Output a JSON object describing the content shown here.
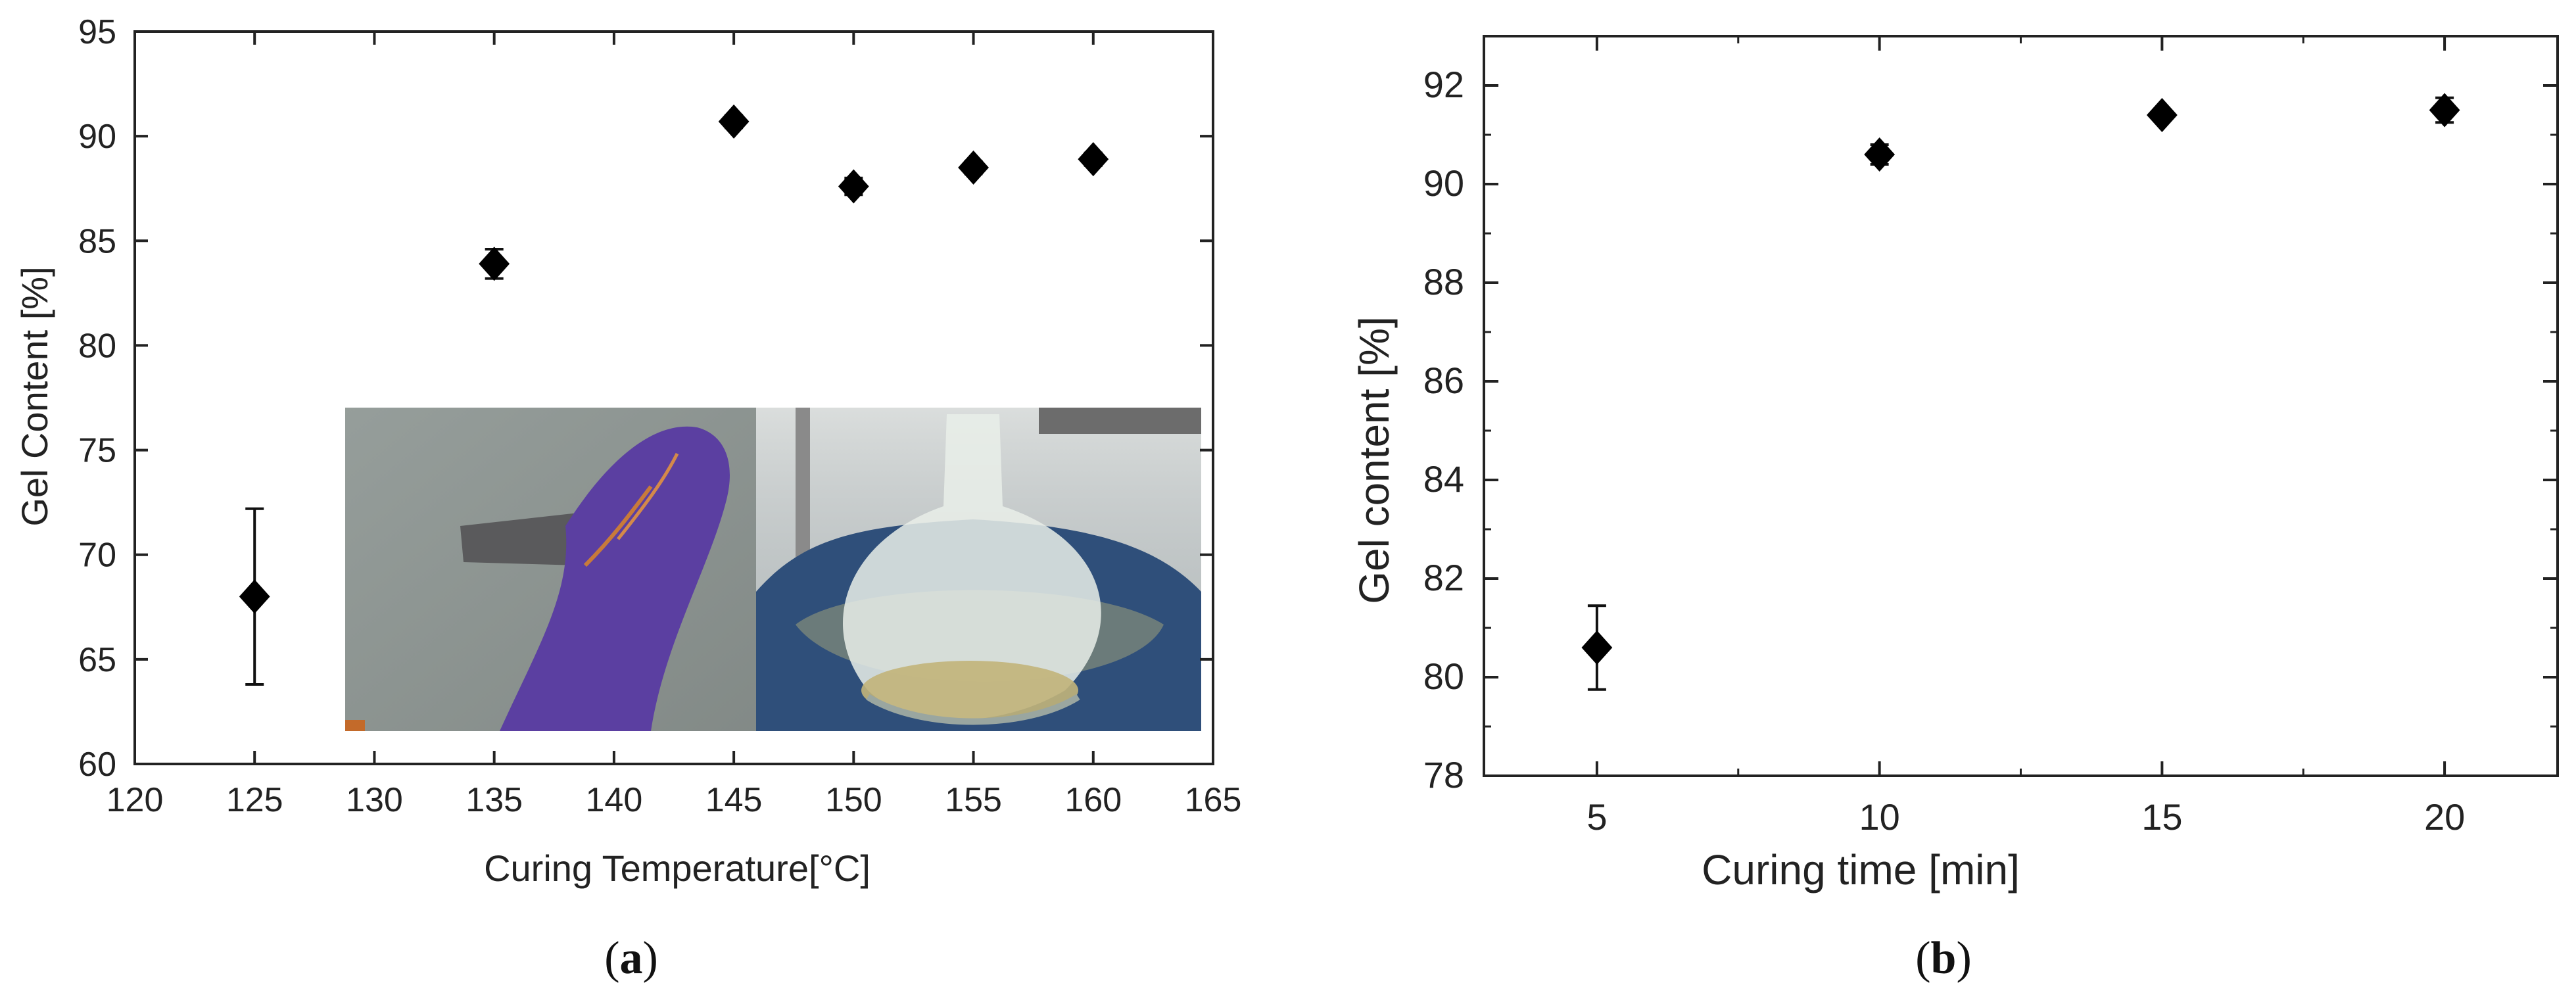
{
  "chart_data": [
    {
      "type": "scatter",
      "panel_label": "a",
      "xlabel": "Curing Temperature[°C]",
      "ylabel": "Gel Content [%]",
      "xlim": [
        120,
        165
      ],
      "ylim": [
        60,
        95
      ],
      "xticks": [
        120,
        125,
        130,
        135,
        140,
        145,
        150,
        155,
        160,
        165
      ],
      "yticks": [
        60,
        65,
        70,
        75,
        80,
        85,
        90,
        95
      ],
      "x": [
        125,
        135,
        145,
        150,
        155,
        160
      ],
      "y": [
        68.0,
        83.9,
        90.7,
        87.6,
        88.5,
        88.9
      ],
      "yerr": [
        4.2,
        0.7,
        0.3,
        0.4,
        0.3,
        0.3
      ],
      "marker": "diamond",
      "color": "#000000",
      "inset": "photograph"
    },
    {
      "type": "scatter",
      "panel_label": "b",
      "xlabel": "Curing time [min]",
      "ylabel": "Gel content [%]",
      "xlim": [
        3,
        22
      ],
      "ylim": [
        78,
        93
      ],
      "xticks": [
        5,
        10,
        15,
        20
      ],
      "yticks": [
        78,
        80,
        82,
        84,
        86,
        88,
        90,
        92
      ],
      "x": [
        5,
        10,
        15,
        20
      ],
      "y": [
        80.6,
        90.6,
        91.4,
        91.5
      ],
      "yerr": [
        0.85,
        0.2,
        0.1,
        0.25
      ],
      "marker": "diamond",
      "color": "#000000"
    }
  ]
}
